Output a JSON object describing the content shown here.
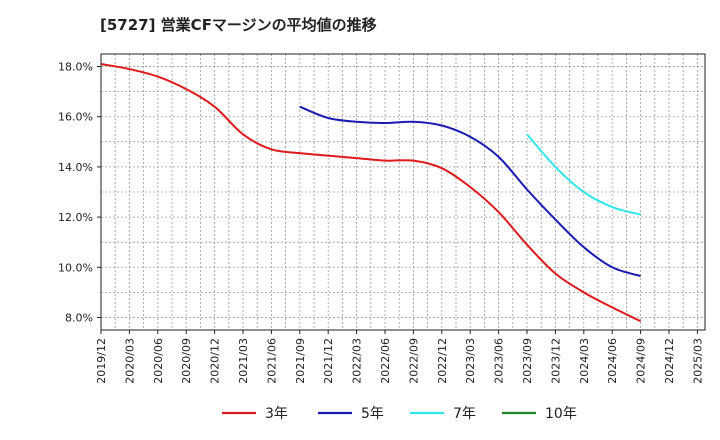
{
  "chart_data": {
    "type": "line",
    "title": "[5727]  営業CFマージンの平均値の推移",
    "xlabel": "",
    "ylabel": "",
    "y_ticks": [
      "8.0%",
      "10.0%",
      "12.0%",
      "14.0%",
      "16.0%",
      "18.0%"
    ],
    "y_tick_values": [
      8,
      10,
      12,
      14,
      16,
      18
    ],
    "ylim": [
      7.5,
      18.5
    ],
    "x_ticks": [
      "2019/12",
      "2020/03",
      "2020/06",
      "2020/09",
      "2020/12",
      "2021/03",
      "2021/06",
      "2021/09",
      "2021/12",
      "2022/03",
      "2022/06",
      "2022/09",
      "2022/12",
      "2023/03",
      "2023/06",
      "2023/09",
      "2023/12",
      "2024/03",
      "2024/06",
      "2024/09",
      "2024/12",
      "2025/03"
    ],
    "grid": true,
    "legend_position": "bottom",
    "series": [
      {
        "name": "3年",
        "color": "#e0191b",
        "x": [
          "2019/12",
          "2020/03",
          "2020/06",
          "2020/09",
          "2020/12",
          "2021/03",
          "2021/06",
          "2021/09",
          "2021/12",
          "2022/03",
          "2022/06",
          "2022/09",
          "2022/12",
          "2023/03",
          "2023/06",
          "2023/09",
          "2023/12",
          "2024/03",
          "2024/06",
          "2024/09"
        ],
        "values": [
          18.1,
          17.9,
          17.6,
          17.1,
          16.4,
          15.3,
          14.7,
          14.55,
          14.45,
          14.35,
          14.25,
          14.25,
          13.95,
          13.2,
          12.2,
          10.9,
          9.75,
          9.0,
          8.4,
          7.85
        ]
      },
      {
        "name": "5年",
        "color": "#1a1ab4",
        "x": [
          "2021/09",
          "2021/12",
          "2022/03",
          "2022/06",
          "2022/09",
          "2022/12",
          "2023/03",
          "2023/06",
          "2023/09",
          "2023/12",
          "2024/03",
          "2024/06",
          "2024/09"
        ],
        "values": [
          16.4,
          15.95,
          15.8,
          15.75,
          15.8,
          15.65,
          15.2,
          14.4,
          13.1,
          11.9,
          10.8,
          10.0,
          9.65
        ]
      },
      {
        "name": "7年",
        "color": "#33e5ee",
        "x": [
          "2023/09",
          "2023/12",
          "2024/03",
          "2024/06",
          "2024/09"
        ],
        "values": [
          15.3,
          14.0,
          13.0,
          12.4,
          12.1
        ]
      },
      {
        "name": "10年",
        "color": "#1e8a1e",
        "x": [],
        "values": []
      }
    ]
  }
}
